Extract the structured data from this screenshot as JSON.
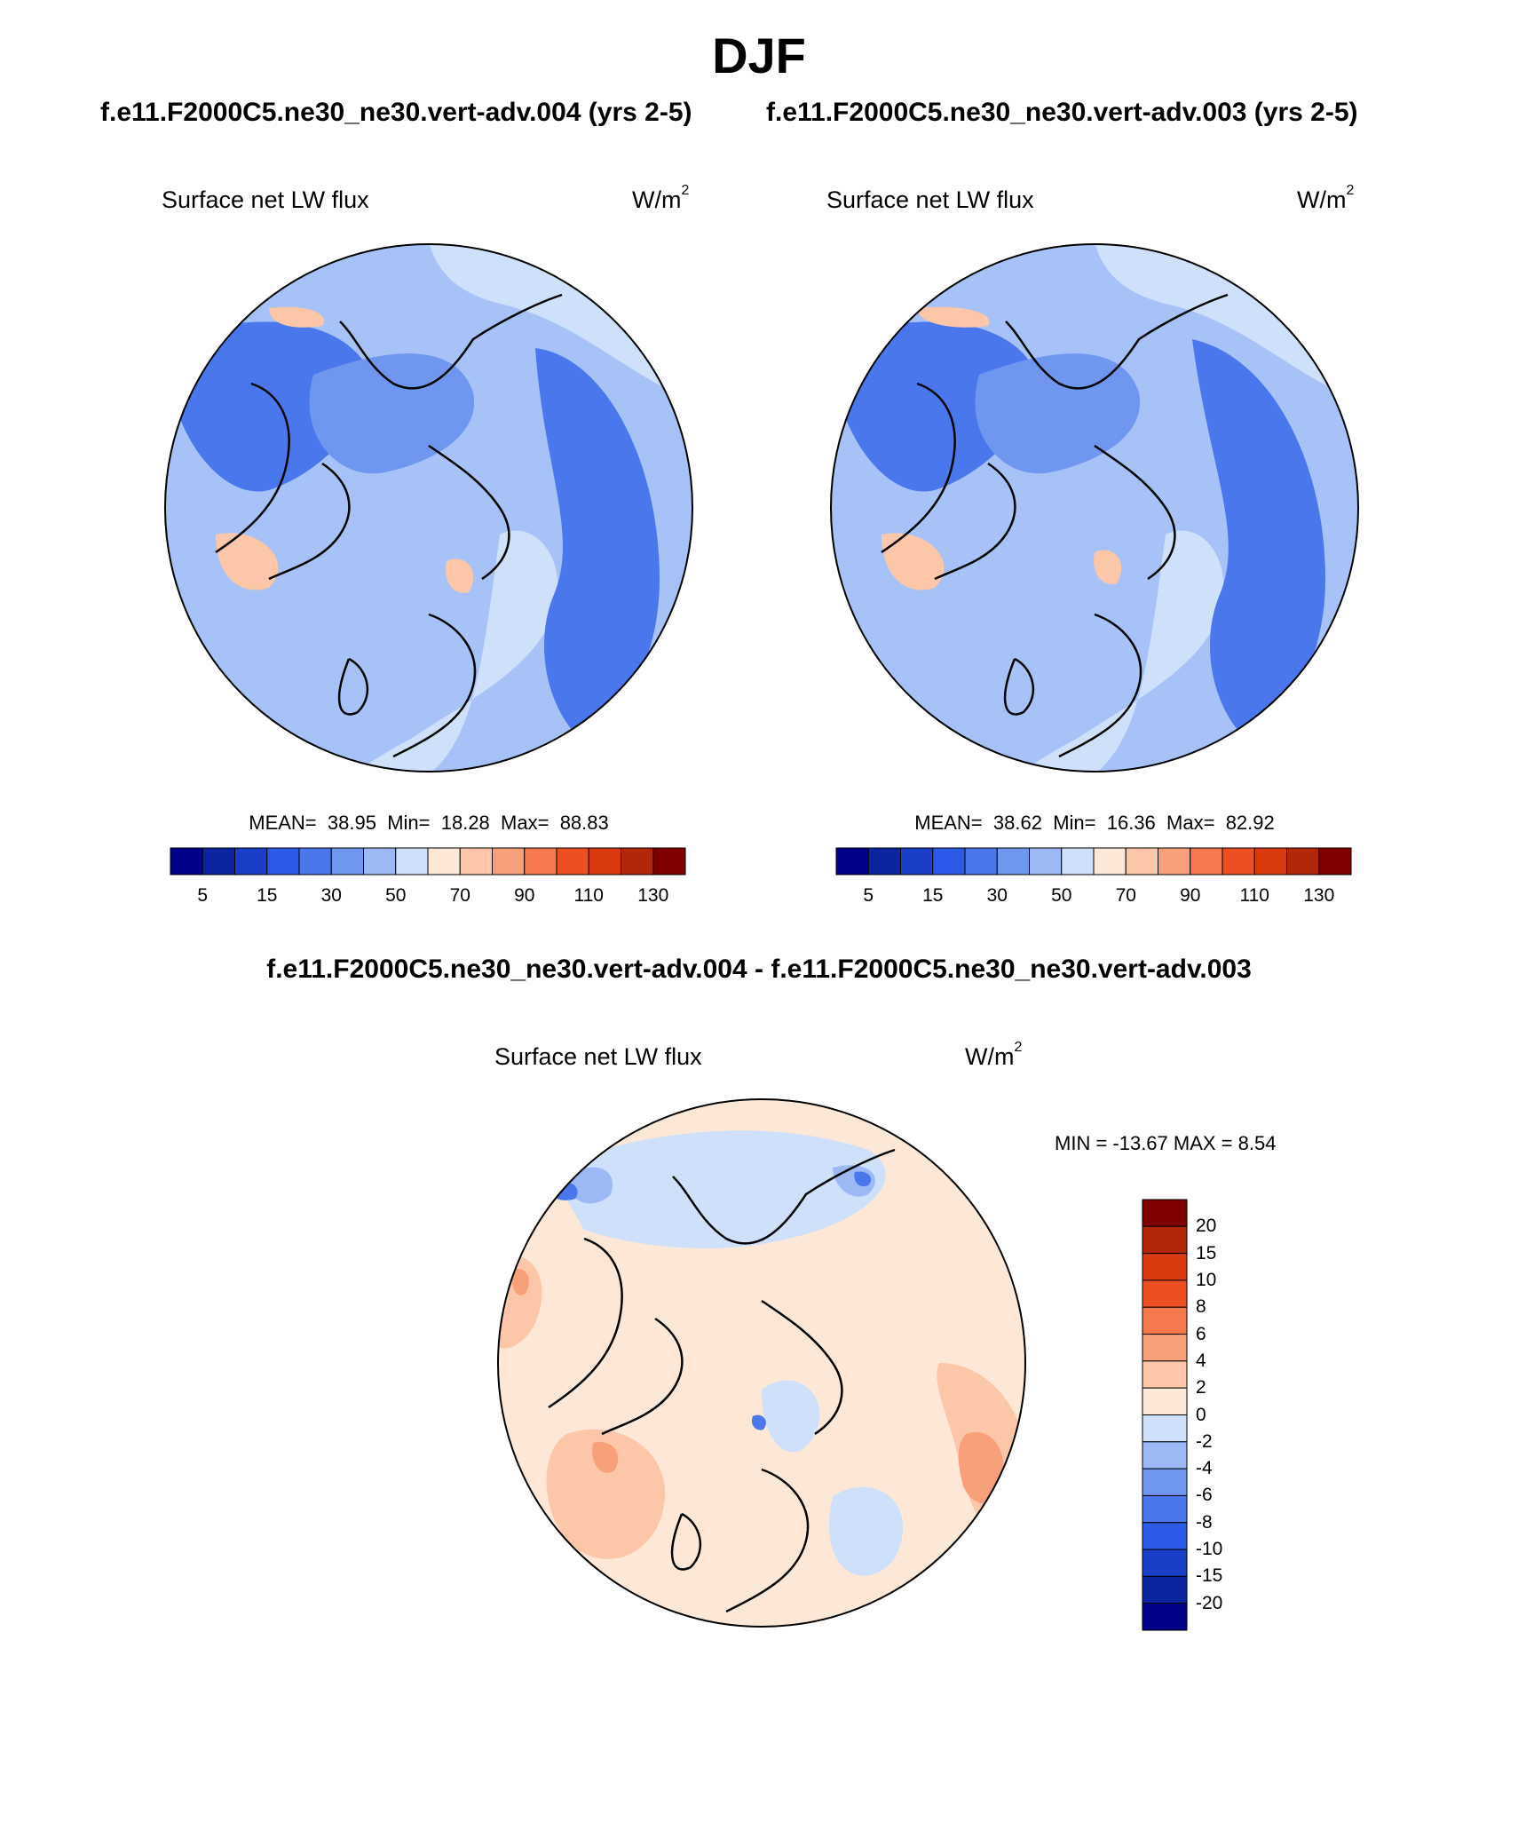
{
  "title": "DJF",
  "panels": [
    {
      "case_title": "f.e11.F2000C5.ne30_ne30.vert-adv.004 (yrs 2-5)",
      "variable": "Surface net LW flux",
      "units": {
        "base": "W/m",
        "exp": "2"
      },
      "stats": {
        "mean_label": "MEAN=",
        "mean": "38.95",
        "min_label": "Min=",
        "min": "18.28",
        "max_label": "Max=",
        "max": "88.83"
      }
    },
    {
      "case_title": "f.e11.F2000C5.ne30_ne30.vert-adv.003 (yrs 2-5)",
      "variable": "Surface net LW flux",
      "units": {
        "base": "W/m",
        "exp": "2"
      },
      "stats": {
        "mean_label": "MEAN=",
        "mean": "38.62",
        "min_label": "Min=",
        "min": "16.36",
        "max_label": "Max=",
        "max": "82.92"
      }
    }
  ],
  "difference": {
    "title": "f.e11.F2000C5.ne30_ne30.vert-adv.004 - f.e11.F2000C5.ne30_ne30.vert-adv.003",
    "variable": "Surface net LW flux",
    "units": {
      "base": "W/m",
      "exp": "2"
    },
    "stats": "MIN = -13.67 MAX =   8.54"
  },
  "abs_colorbar": {
    "labels": [
      "5",
      "15",
      "30",
      "50",
      "70",
      "90",
      "110",
      "130"
    ],
    "colors": [
      "#00008b",
      "#0b24a0",
      "#1a3ec8",
      "#2b5ae6",
      "#4a78ec",
      "#7097f0",
      "#9cb8f5",
      "#cfe0fa",
      "#fde8d8",
      "#fcc6a8",
      "#f8a07a",
      "#f47a4e",
      "#ec5022",
      "#d93a10",
      "#b32608",
      "#7f0000"
    ]
  },
  "diff_colorbar": {
    "labels": [
      "20",
      "15",
      "10",
      "8",
      "6",
      "4",
      "2",
      "0",
      "-2",
      "-4",
      "-6",
      "-8",
      "-10",
      "-15",
      "-20"
    ],
    "colors": [
      "#7f0000",
      "#b32608",
      "#d93a10",
      "#ec5022",
      "#f47a4e",
      "#f8a07a",
      "#fcc6a8",
      "#fde8d8",
      "#cfe0fa",
      "#9cb8f5",
      "#7097f0",
      "#4a78ec",
      "#2b5ae6",
      "#1a3ec8",
      "#0b24a0",
      "#00008b"
    ]
  },
  "map_colors": {
    "abs_background": "#a6c2f7",
    "abs_dark": "#4a78ec",
    "abs_mid": "#7097f0",
    "abs_light": "#cfe0fa",
    "abs_warm": "#fcc6a8",
    "diff_background": "#fde8d8",
    "diff_warm": "#fcc6a8",
    "diff_warmer": "#f8a07a",
    "diff_cool": "#cfe0fa",
    "diff_cooler": "#9cb8f5",
    "diff_blue": "#4a78ec",
    "coast": "#000000"
  }
}
